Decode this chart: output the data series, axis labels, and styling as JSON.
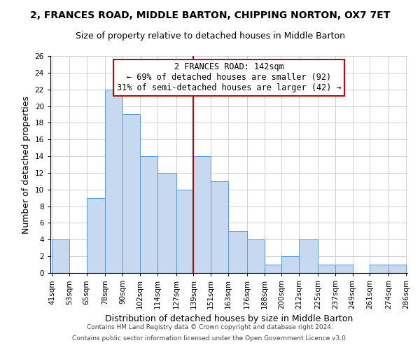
{
  "title": "2, FRANCES ROAD, MIDDLE BARTON, CHIPPING NORTON, OX7 7ET",
  "subtitle": "Size of property relative to detached houses in Middle Barton",
  "xlabel": "Distribution of detached houses by size in Middle Barton",
  "ylabel": "Number of detached properties",
  "bin_edges": [
    41,
    53,
    65,
    78,
    90,
    102,
    114,
    127,
    139,
    151,
    163,
    176,
    188,
    200,
    212,
    225,
    237,
    249,
    261,
    274,
    286
  ],
  "counts": [
    4,
    0,
    9,
    22,
    19,
    14,
    12,
    10,
    14,
    11,
    5,
    4,
    1,
    2,
    4,
    1,
    1,
    0,
    1,
    1
  ],
  "bar_color": "#c6d9f0",
  "bar_edge_color": "#5b9bd5",
  "reference_line_x": 139,
  "reference_line_color": "#cc0000",
  "ylim": [
    0,
    26
  ],
  "yticks": [
    0,
    2,
    4,
    6,
    8,
    10,
    12,
    14,
    16,
    18,
    20,
    22,
    24,
    26
  ],
  "tick_labels": [
    "41sqm",
    "53sqm",
    "65sqm",
    "78sqm",
    "90sqm",
    "102sqm",
    "114sqm",
    "127sqm",
    "139sqm",
    "151sqm",
    "163sqm",
    "176sqm",
    "188sqm",
    "200sqm",
    "212sqm",
    "225sqm",
    "237sqm",
    "249sqm",
    "261sqm",
    "274sqm",
    "286sqm"
  ],
  "annotation_title": "2 FRANCES ROAD: 142sqm",
  "annotation_line1": "← 69% of detached houses are smaller (92)",
  "annotation_line2": "31% of semi-detached houses are larger (42) →",
  "annotation_box_color": "#ffffff",
  "annotation_box_edge_color": "#cc0000",
  "footer_line1": "Contains HM Land Registry data © Crown copyright and database right 2024.",
  "footer_line2": "Contains public sector information licensed under the Open Government Licence v3.0.",
  "background_color": "#ffffff",
  "grid_color": "#d0d0d0",
  "title_fontsize": 10,
  "subtitle_fontsize": 9,
  "axis_label_fontsize": 9,
  "tick_fontsize": 7.5,
  "annotation_fontsize": 8.5,
  "footer_fontsize": 6.5
}
